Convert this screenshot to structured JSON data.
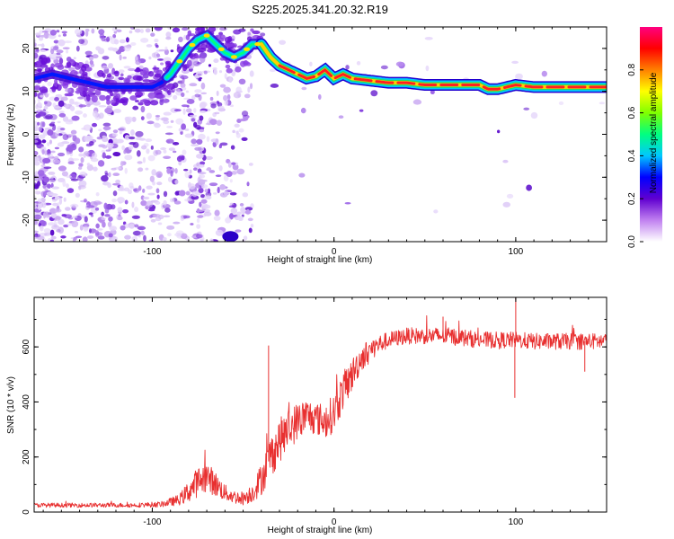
{
  "title": "S225.2025.341.20.32.R19",
  "chart_data": [
    {
      "type": "heatmap",
      "xlabel": "Height of straight line (km)",
      "ylabel": "Frequency (Hz)",
      "xlim": [
        -165,
        150
      ],
      "ylim": [
        -25,
        25
      ],
      "xticks": [
        -100,
        0,
        100
      ],
      "xtick_labels": [
        "-100",
        "0",
        "100"
      ],
      "yticks": [
        -20,
        -10,
        0,
        10,
        20
      ],
      "ytick_labels": [
        "-20",
        "-10",
        "0",
        "10",
        "20"
      ],
      "ridge": {
        "x": [
          -165,
          -155,
          -145,
          -135,
          -125,
          -115,
          -105,
          -100,
          -95,
          -90,
          -85,
          -80,
          -75,
          -70,
          -65,
          -60,
          -55,
          -50,
          -45,
          -40,
          -35,
          -30,
          -25,
          -20,
          -15,
          -10,
          -5,
          0,
          5,
          10,
          20,
          30,
          40,
          50,
          60,
          70,
          80,
          85,
          90,
          95,
          100,
          110,
          120,
          130,
          140,
          150
        ],
        "freq": [
          13,
          14,
          13,
          12,
          11,
          11,
          11,
          11,
          12,
          14,
          17,
          20,
          22,
          23,
          21,
          19,
          18,
          19,
          21,
          21,
          18,
          16,
          15,
          14,
          13,
          13.5,
          15,
          13,
          14,
          13,
          12.5,
          12,
          12,
          11.5,
          11.5,
          11.5,
          11.5,
          10.5,
          10.5,
          11,
          11.5,
          11,
          11,
          11,
          11,
          11
        ]
      },
      "colorbar": {
        "label": "Normalized spectral amplitude",
        "range": [
          0,
          1
        ],
        "ticks": [
          0,
          0.2,
          0.4,
          0.6,
          0.8
        ],
        "tick_labels": [
          "0.0",
          "0.2",
          "0.4",
          "0.6",
          "0.8"
        ],
        "colors": [
          "#ffffff",
          "#c080f0",
          "#6000d0",
          "#0000ff",
          "#00c8ff",
          "#00ff80",
          "#80ff00",
          "#ffff00",
          "#ff8000",
          "#ff0000",
          "#ff0080"
        ]
      }
    },
    {
      "type": "line",
      "xlabel": "Height of straight line (km)",
      "ylabel": "SNR (10 * v/v)",
      "xlim": [
        -165,
        150
      ],
      "ylim": [
        0,
        780
      ],
      "xticks": [
        -100,
        0,
        100
      ],
      "xtick_labels": [
        "-100",
        "0",
        "100"
      ],
      "yticks": [
        0,
        200,
        400,
        600
      ],
      "ytick_labels": [
        "0",
        "200",
        "400",
        "600"
      ],
      "series": [
        {
          "name": "SNR",
          "color": "#e83030",
          "x": [
            -165,
            -150,
            -130,
            -110,
            -95,
            -85,
            -80,
            -75,
            -70,
            -65,
            -60,
            -55,
            -50,
            -45,
            -40,
            -35,
            -30,
            -25,
            -20,
            -15,
            -10,
            -5,
            0,
            5,
            10,
            15,
            20,
            25,
            30,
            40,
            50,
            60,
            70,
            80,
            90,
            100,
            110,
            120,
            130,
            140,
            150
          ],
          "y": [
            25,
            25,
            25,
            25,
            28,
            45,
            75,
            110,
            130,
            100,
            70,
            55,
            50,
            70,
            120,
            200,
            260,
            300,
            330,
            350,
            340,
            330,
            360,
            440,
            500,
            560,
            590,
            610,
            625,
            640,
            640,
            640,
            635,
            625,
            625,
            625,
            620,
            620,
            620,
            620,
            620
          ],
          "noise": [
            8,
            8,
            8,
            8,
            10,
            20,
            40,
            55,
            55,
            45,
            30,
            25,
            25,
            35,
            60,
            80,
            80,
            75,
            70,
            65,
            60,
            65,
            70,
            70,
            60,
            50,
            40,
            35,
            30,
            30,
            30,
            32,
            32,
            30,
            30,
            30,
            30,
            30,
            30,
            30,
            30
          ],
          "spikes": [
            {
              "x": 100,
              "y": 780
            },
            {
              "x": 60,
              "y": 710
            },
            {
              "x": -36,
              "y": 605
            },
            {
              "x": 99.5,
              "y": 415
            },
            {
              "x": 138,
              "y": 510
            }
          ]
        }
      ]
    }
  ]
}
